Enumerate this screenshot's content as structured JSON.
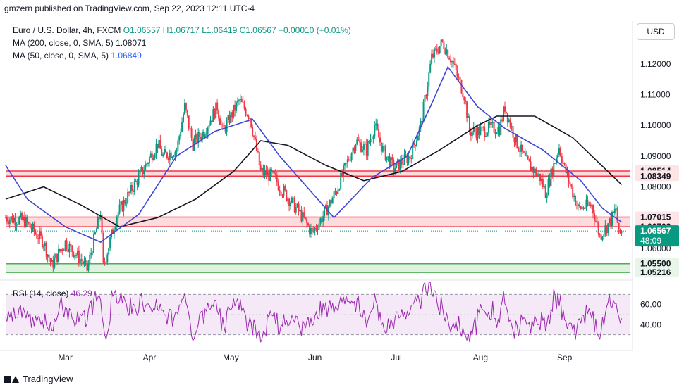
{
  "header": {
    "caption": "gmzern published on TradingView.com, Sep 22, 2023 12:11 UTC-4",
    "symbol_line_prefix": "Euro / U.S. Dollar, 4h, FXCM",
    "ohlc": {
      "o": "O1.06557",
      "h": "H1.06717",
      "l": "L1.06419",
      "c": "C1.06567",
      "chg": "+0.00010 (+0.01%)"
    },
    "ma200_label": "MA (200, close, 0, SMA, 5)",
    "ma200_value": "1.08071",
    "ma50_label": "MA (50, close, 0, SMA, 5)",
    "ma50_value": "1.06849",
    "currency_button": "USD"
  },
  "rsi": {
    "label": "RSI (14, close)",
    "value": "46.29"
  },
  "footer": {
    "brand": "TradingView"
  },
  "colors": {
    "up": "#089981",
    "down": "#f23645",
    "ma200": "#131722",
    "ma50": "#3f47d4",
    "resistance": "#f23645",
    "support": "#4caf50",
    "rsi": "#9c27b0"
  },
  "chart_data": {
    "type": "candlestick",
    "symbol": "EURUSD",
    "timeframe": "4h",
    "price_axis_ticks": [
      "1.12000",
      "1.11000",
      "1.10000",
      "1.09000",
      "1.08000",
      "1.07000",
      "1.06000"
    ],
    "x_tick_labels": [
      "Mar",
      "Apr",
      "May",
      "Jun",
      "Jul",
      "Aug",
      "Sep"
    ],
    "x_tick_dates": [
      "2023-03-01",
      "2023-04-01",
      "2023-05-01",
      "2023-06-01",
      "2023-07-01",
      "2023-08-01",
      "2023-09-01"
    ],
    "x_range": [
      "2023-02-07",
      "2023-09-25"
    ],
    "y_range": [
      1.0515,
      1.1275
    ],
    "current_price": {
      "value": "1.06567",
      "countdown": "48:09"
    },
    "zones": [
      {
        "kind": "resistance",
        "upper": "1.08514",
        "lower": "1.08349"
      },
      {
        "kind": "resistance",
        "upper": "1.07015",
        "lower": "1.06703"
      },
      {
        "kind": "support",
        "upper": "1.05500",
        "lower": "1.05216"
      }
    ],
    "close_path": [
      [
        "2023-02-07",
        1.07
      ],
      [
        "2023-02-14",
        1.069
      ],
      [
        "2023-02-21",
        1.062
      ],
      [
        "2023-02-24",
        1.0545
      ],
      [
        "2023-03-01",
        1.062
      ],
      [
        "2023-03-07",
        1.056
      ],
      [
        "2023-03-09",
        1.053
      ],
      [
        "2023-03-14",
        1.072
      ],
      [
        "2023-03-15",
        1.054
      ],
      [
        "2023-03-20",
        1.071
      ],
      [
        "2023-03-24",
        1.077
      ],
      [
        "2023-03-28",
        1.083
      ],
      [
        "2023-04-04",
        1.094
      ],
      [
        "2023-04-06",
        1.09
      ],
      [
        "2023-04-11",
        1.092
      ],
      [
        "2023-04-14",
        1.106
      ],
      [
        "2023-04-17",
        1.094
      ],
      [
        "2023-04-21",
        1.098
      ],
      [
        "2023-04-26",
        1.106
      ],
      [
        "2023-04-28",
        1.098
      ],
      [
        "2023-05-04",
        1.108
      ],
      [
        "2023-05-08",
        1.103
      ],
      [
        "2023-05-12",
        1.085
      ],
      [
        "2023-05-17",
        1.083
      ],
      [
        "2023-05-19",
        1.08
      ],
      [
        "2023-05-26",
        1.072
      ],
      [
        "2023-05-31",
        1.065
      ],
      [
        "2023-06-05",
        1.072
      ],
      [
        "2023-06-09",
        1.079
      ],
      [
        "2023-06-16",
        1.095
      ],
      [
        "2023-06-20",
        1.092
      ],
      [
        "2023-06-23",
        1.1
      ],
      [
        "2023-06-26",
        1.092
      ],
      [
        "2023-06-30",
        1.086
      ],
      [
        "2023-07-06",
        1.09
      ],
      [
        "2023-07-10",
        1.1
      ],
      [
        "2023-07-14",
        1.122
      ],
      [
        "2023-07-18",
        1.127
      ],
      [
        "2023-07-21",
        1.122
      ],
      [
        "2023-07-26",
        1.11
      ],
      [
        "2023-07-28",
        1.098
      ],
      [
        "2023-08-01",
        1.098
      ],
      [
        "2023-08-04",
        1.099
      ],
      [
        "2023-08-08",
        1.099
      ],
      [
        "2023-08-10",
        1.106
      ],
      [
        "2023-08-14",
        1.095
      ],
      [
        "2023-08-18",
        1.088
      ],
      [
        "2023-08-23",
        1.083
      ],
      [
        "2023-08-25",
        1.078
      ],
      [
        "2023-08-30",
        1.093
      ],
      [
        "2023-09-01",
        1.086
      ],
      [
        "2023-09-06",
        1.073
      ],
      [
        "2023-09-11",
        1.074
      ],
      [
        "2023-09-14",
        1.064
      ],
      [
        "2023-09-18",
        1.069
      ],
      [
        "2023-09-20",
        1.073
      ],
      [
        "2023-09-21",
        1.064
      ],
      [
        "2023-09-22",
        1.0657
      ]
    ],
    "ma200_path": [
      [
        "2023-02-07",
        1.076
      ],
      [
        "2023-02-21",
        1.08
      ],
      [
        "2023-03-07",
        1.074
      ],
      [
        "2023-03-21",
        1.067
      ],
      [
        "2023-04-04",
        1.07
      ],
      [
        "2023-04-18",
        1.076
      ],
      [
        "2023-05-02",
        1.085
      ],
      [
        "2023-05-12",
        1.095
      ],
      [
        "2023-05-22",
        1.0935
      ],
      [
        "2023-06-05",
        1.087
      ],
      [
        "2023-06-19",
        1.082
      ],
      [
        "2023-07-03",
        1.085
      ],
      [
        "2023-07-17",
        1.092
      ],
      [
        "2023-07-31",
        1.1
      ],
      [
        "2023-08-07",
        1.103
      ],
      [
        "2023-08-21",
        1.103
      ],
      [
        "2023-09-04",
        1.096
      ],
      [
        "2023-09-22",
        1.0807
      ]
    ],
    "ma50_path": [
      [
        "2023-02-07",
        1.087
      ],
      [
        "2023-02-15",
        1.076
      ],
      [
        "2023-03-01",
        1.067
      ],
      [
        "2023-03-14",
        1.062
      ],
      [
        "2023-03-28",
        1.071
      ],
      [
        "2023-04-11",
        1.09
      ],
      [
        "2023-04-25",
        1.098
      ],
      [
        "2023-05-09",
        1.102
      ],
      [
        "2023-05-19",
        1.09
      ],
      [
        "2023-05-30",
        1.079
      ],
      [
        "2023-06-08",
        1.07
      ],
      [
        "2023-06-22",
        1.083
      ],
      [
        "2023-07-05",
        1.09
      ],
      [
        "2023-07-14",
        1.107
      ],
      [
        "2023-07-20",
        1.119
      ],
      [
        "2023-07-31",
        1.106
      ],
      [
        "2023-08-10",
        1.099
      ],
      [
        "2023-08-24",
        1.092
      ],
      [
        "2023-09-07",
        1.082
      ],
      [
        "2023-09-15",
        1.073
      ],
      [
        "2023-09-22",
        1.0685
      ]
    ],
    "rsi_axis_ticks": [
      "60.00",
      "40.00"
    ],
    "rsi_band": [
      30,
      70
    ],
    "rsi_last": "46.29"
  }
}
